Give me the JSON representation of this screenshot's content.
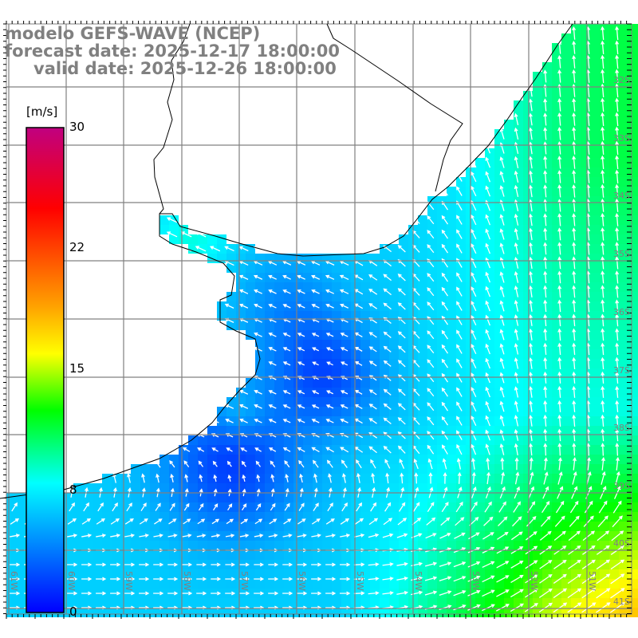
{
  "header": {
    "model_line": "modelo GEFS-WAVE (NCEP)",
    "forecast_line": "forecast date: 2025-12-17 18:00:00",
    "valid_line": "valid date: 2025-12-26 18:00:00"
  },
  "colorbar": {
    "unit": "[m/s]",
    "min": 0,
    "max": 30,
    "ticks": [
      {
        "value": 30,
        "label": "30"
      },
      {
        "value": 22,
        "label": "22"
      },
      {
        "value": 15,
        "label": "15"
      },
      {
        "value": 8,
        "label": "8"
      },
      {
        "value": 0,
        "label": "0"
      }
    ],
    "stops": [
      {
        "value": 0,
        "color": "#0000ff"
      },
      {
        "value": 4,
        "color": "#0080ff"
      },
      {
        "value": 8,
        "color": "#00ffff"
      },
      {
        "value": 12.5,
        "color": "#00ff00"
      },
      {
        "value": 16,
        "color": "#ffff00"
      },
      {
        "value": 19,
        "color": "#ffa000"
      },
      {
        "value": 25,
        "color": "#ff0000"
      },
      {
        "value": 30,
        "color": "#c00080"
      }
    ]
  },
  "map": {
    "land_color": "#ffffff",
    "grid_color": "#808080",
    "lat_labels": [
      "32S",
      "33S",
      "34S",
      "35S",
      "36S",
      "37S",
      "38S",
      "39S",
      "40S",
      "41S"
    ],
    "lon_labels": [
      "61W",
      "60W",
      "59W",
      "58W",
      "57W",
      "56W",
      "55W",
      "54W",
      "53W",
      "52W",
      "51W"
    ]
  }
}
